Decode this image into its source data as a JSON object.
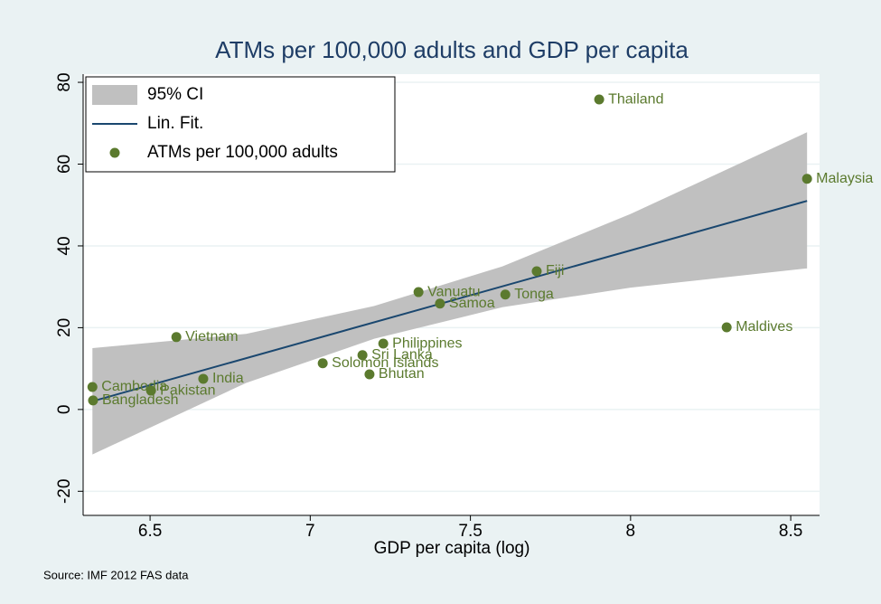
{
  "chart_data": {
    "type": "scatter",
    "title": "ATMs per 100,000 adults and GDP per capita",
    "xlabel": "GDP per capita (log)",
    "source": "Source: IMF 2012 FAS data",
    "xlim": [
      6.291,
      8.59
    ],
    "ylim": [
      -25.9,
      82
    ],
    "xticks": [
      6.5,
      7,
      7.5,
      8,
      8.5
    ],
    "yticks": [
      -20,
      0,
      20,
      40,
      60,
      80
    ],
    "grid": true,
    "legend": "top-left",
    "series": [
      {
        "name": "95% CI",
        "color": "#c0c0c0",
        "x": [
          6.32,
          6.8,
          7.2,
          7.6,
          8.0,
          8.551
        ],
        "lower": [
          -11,
          6.5,
          17.3,
          25,
          29.8,
          34.5
        ],
        "upper": [
          15,
          18.5,
          25.3,
          35,
          47.8,
          67.8
        ]
      },
      {
        "name": "Lin. Fit.",
        "color": "#1a476f",
        "x": [
          6.32,
          8.551
        ],
        "values": [
          2.0,
          51.0
        ]
      },
      {
        "name": "ATMs per 100,000 adults",
        "color": "#5b7a2e",
        "labels": [
          "Thailand",
          "Malaysia",
          "Fiji",
          "Vanuatu",
          "Tonga",
          "Samoa",
          "Maldives",
          "Vietnam",
          "Philippines",
          "Sri Lanka",
          "Solomon Islands",
          "Bhutan",
          "India",
          "Cambodia",
          "Pakistan",
          "Bangladesh"
        ],
        "x": [
          7.902,
          8.551,
          7.707,
          7.338,
          7.609,
          7.405,
          8.3,
          6.582,
          7.228,
          7.163,
          7.039,
          7.185,
          6.666,
          6.32,
          6.503,
          6.322
        ],
        "values": [
          75.8,
          56.4,
          33.8,
          28.7,
          28.1,
          25.9,
          20.1,
          17.7,
          16.1,
          13.3,
          11.3,
          8.6,
          7.5,
          5.5,
          4.6,
          2.2
        ]
      }
    ]
  }
}
